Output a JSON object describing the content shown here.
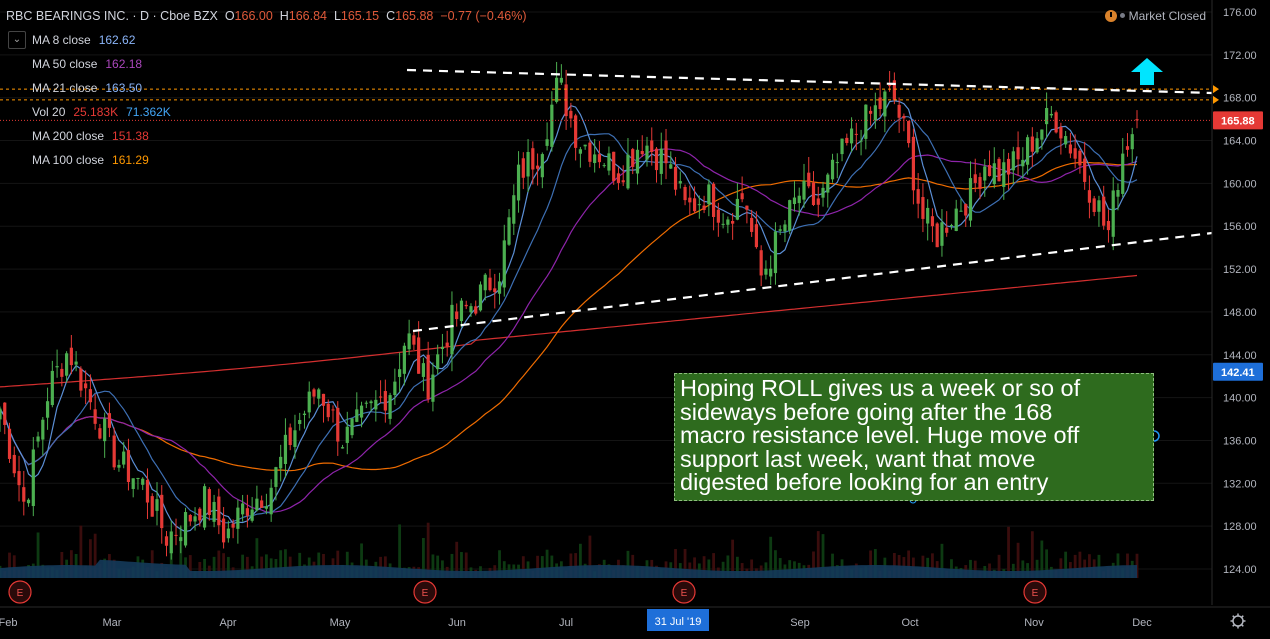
{
  "header": {
    "symbol": "RBC BEARINGS INC. · D · Cboe BZX",
    "o_label": "O",
    "o": "166.00",
    "h_label": "H",
    "h": "166.84",
    "l_label": "L",
    "l": "165.15",
    "c_label": "C",
    "c": "165.88",
    "change": "−0.77 (−0.46%)",
    "market_status": "Market Closed"
  },
  "legend": [
    {
      "label": "MA 8 close",
      "value": "162.62",
      "color": "#5b9cf6"
    },
    {
      "label": "MA 50 close",
      "value": "162.18",
      "color": "#9c27b0"
    },
    {
      "label": "MA 21 close",
      "value": "163.50",
      "color": "#5b9cf6"
    },
    {
      "label": "Vol 20",
      "value": "25.183K",
      "value2": "71.362K",
      "color": "#e53935",
      "color2": "#42a5f5"
    },
    {
      "label": "MA 200 close",
      "value": "151.38",
      "color": "#e53935"
    },
    {
      "label": "MA 100 close",
      "value": "161.29",
      "color": "#ff9800"
    }
  ],
  "note": {
    "lines": [
      "Hoping ROLL gives us a week or so of",
      "sideways before going after the 168",
      "macro resistance level. Huge move off",
      "support last week, want that move",
      "digested before looking for an entry"
    ]
  },
  "chart_data": {
    "type": "candlestick",
    "y_ticks": [
      "176.00",
      "172.00",
      "168.00",
      "164.00",
      "160.00",
      "156.00",
      "152.00",
      "148.00",
      "144.00",
      "140.00",
      "136.00",
      "132.00",
      "128.00",
      "124.00"
    ],
    "ylim": [
      120.5,
      177.5
    ],
    "x_ticks": [
      "Feb",
      "Mar",
      "Apr",
      "May",
      "Jun",
      "Jul",
      "Sep",
      "Oct",
      "Nov",
      "Dec"
    ],
    "highlight_x_label": "31 Jul '19",
    "price_labels": [
      {
        "value": 165.88,
        "text": "165.88",
        "color": "#e53935"
      },
      {
        "value": 142.41,
        "text": "142.41",
        "color": "#1e6fd9"
      }
    ],
    "resistance_lines": [
      168.8,
      167.8
    ],
    "earnings_markers": [
      "E",
      "E",
      "E",
      "E"
    ],
    "series_anchors": [
      {
        "day": 0,
        "close": 139
      },
      {
        "day": 5,
        "close": 130
      },
      {
        "day": 10,
        "close": 141
      },
      {
        "day": 14,
        "close": 144.5
      },
      {
        "day": 19,
        "close": 139
      },
      {
        "day": 24,
        "close": 134
      },
      {
        "day": 29,
        "close": 132
      },
      {
        "day": 34,
        "close": 127
      },
      {
        "day": 38,
        "close": 128.5
      },
      {
        "day": 42,
        "close": 130.5
      },
      {
        "day": 46,
        "close": 127
      },
      {
        "day": 50,
        "close": 130
      },
      {
        "day": 55,
        "close": 131.5
      },
      {
        "day": 60,
        "close": 137
      },
      {
        "day": 65,
        "close": 141
      },
      {
        "day": 70,
        "close": 136
      },
      {
        "day": 76,
        "close": 139
      },
      {
        "day": 80,
        "close": 141
      },
      {
        "day": 83,
        "close": 146
      },
      {
        "day": 87,
        "close": 141
      },
      {
        "day": 92,
        "close": 147
      },
      {
        "day": 97,
        "close": 149
      },
      {
        "day": 102,
        "close": 152
      },
      {
        "day": 106,
        "close": 161
      },
      {
        "day": 110,
        "close": 163
      },
      {
        "day": 114,
        "close": 169.5
      },
      {
        "day": 118,
        "close": 164
      },
      {
        "day": 122,
        "close": 163
      },
      {
        "day": 126,
        "close": 161
      },
      {
        "day": 131,
        "close": 164
      },
      {
        "day": 136,
        "close": 162
      },
      {
        "day": 140,
        "close": 157.5
      },
      {
        "day": 144,
        "close": 159
      },
      {
        "day": 148,
        "close": 157
      },
      {
        "day": 152,
        "close": 159
      },
      {
        "day": 155,
        "close": 151
      },
      {
        "day": 159,
        "close": 155
      },
      {
        "day": 163,
        "close": 159
      },
      {
        "day": 167,
        "close": 158
      },
      {
        "day": 171,
        "close": 162
      },
      {
        "day": 175,
        "close": 165
      },
      {
        "day": 179,
        "close": 167
      },
      {
        "day": 182,
        "close": 168.5
      },
      {
        "day": 185,
        "close": 164
      },
      {
        "day": 188,
        "close": 157
      },
      {
        "day": 191,
        "close": 155
      },
      {
        "day": 194,
        "close": 157
      },
      {
        "day": 198,
        "close": 159
      },
      {
        "day": 201,
        "close": 162
      },
      {
        "day": 204,
        "close": 161
      },
      {
        "day": 208,
        "close": 162
      },
      {
        "day": 212,
        "close": 165
      },
      {
        "day": 215,
        "close": 166.5
      },
      {
        "day": 218,
        "close": 164
      },
      {
        "day": 221,
        "close": 161
      },
      {
        "day": 224,
        "close": 158
      },
      {
        "day": 226,
        "close": 155
      },
      {
        "day": 229,
        "close": 163
      },
      {
        "day": 232,
        "close": 165.88
      }
    ]
  }
}
